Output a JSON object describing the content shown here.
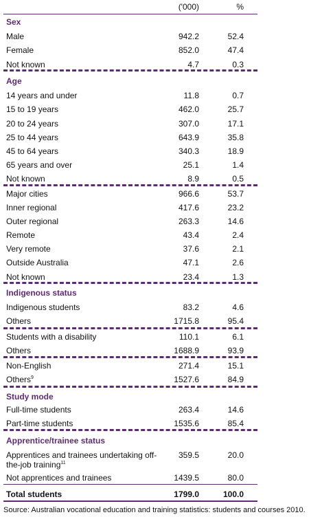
{
  "header": {
    "col1": "('000)",
    "col2": "%"
  },
  "rows": [
    {
      "kind": "head",
      "label": "Sex"
    },
    {
      "kind": "row",
      "label": "Male",
      "v1": "942.2",
      "v2": "52.4"
    },
    {
      "kind": "row",
      "label": "Female",
      "v1": "852.0",
      "v2": "47.4"
    },
    {
      "kind": "row",
      "label": "Not known",
      "v1": "4.7",
      "v2": "0.3"
    },
    {
      "kind": "head",
      "label": "Age"
    },
    {
      "kind": "row",
      "label": "14 years and under",
      "v1": "11.8",
      "v2": "0.7"
    },
    {
      "kind": "row",
      "label": "15 to 19 years",
      "v1": "462.0",
      "v2": "25.7"
    },
    {
      "kind": "row",
      "label": "20 to 24 years",
      "v1": "307.0",
      "v2": "17.1"
    },
    {
      "kind": "row",
      "label": "25 to 44 years",
      "v1": "643.9",
      "v2": "35.8"
    },
    {
      "kind": "row",
      "label": "45 to 64 years",
      "v1": "340.3",
      "v2": "18.9"
    },
    {
      "kind": "row",
      "label": "65 years and over",
      "v1": "25.1",
      "v2": "1.4"
    },
    {
      "kind": "row",
      "label": "Not known",
      "v1": "8.9",
      "v2": "0.5"
    },
    {
      "kind": "row",
      "label": "Major cities",
      "v1": "966.6",
      "v2": "53.7"
    },
    {
      "kind": "row",
      "label": "Inner regional",
      "v1": "417.6",
      "v2": "23.2"
    },
    {
      "kind": "row",
      "label": "Outer regional",
      "v1": "263.3",
      "v2": "14.6"
    },
    {
      "kind": "row",
      "label": "Remote",
      "v1": "43.4",
      "v2": "2.4"
    },
    {
      "kind": "row",
      "label": "Very remote",
      "v1": "37.6",
      "v2": "2.1"
    },
    {
      "kind": "row",
      "label": "Outside Australia",
      "v1": "47.1",
      "v2": "2.6"
    },
    {
      "kind": "row",
      "label": "Not known",
      "v1": "23.4",
      "v2": "1.3"
    },
    {
      "kind": "head",
      "label": "Indigenous status"
    },
    {
      "kind": "row",
      "label": "Indigenous students",
      "v1": "83.2",
      "v2": "4.6"
    },
    {
      "kind": "row",
      "label": "Others",
      "v1": "1715.8",
      "v2": "95.4"
    },
    {
      "kind": "row",
      "label": "Students with a disability",
      "v1": "110.1",
      "v2": "6.1"
    },
    {
      "kind": "row",
      "label": "Others",
      "v1": "1688.9",
      "v2": "93.9"
    },
    {
      "kind": "row",
      "label": "Non-English",
      "v1": "271.4",
      "v2": "15.1"
    },
    {
      "kind": "row",
      "label": "Others",
      "sup": "9",
      "v1": "1527.6",
      "v2": "84.9"
    },
    {
      "kind": "head",
      "label": "Study mode"
    },
    {
      "kind": "row",
      "label": "Full-time students",
      "v1": "263.4",
      "v2": "14.6"
    },
    {
      "kind": "row",
      "label": "Part-time students",
      "v1": "1535.6",
      "v2": "85.4"
    },
    {
      "kind": "head",
      "label": "Apprentice/trainee status"
    },
    {
      "kind": "row2",
      "label": "Apprentices and trainees undertaking off-",
      "label2": "the-job training",
      "sup": "11",
      "v1": "359.5",
      "v2": "20.0"
    },
    {
      "kind": "row",
      "label": "Not apprentices and trainees",
      "v1": "1439.5",
      "v2": "80.0"
    },
    {
      "kind": "total",
      "label": "Total students",
      "v1": "1799.0",
      "v2": "100.0"
    }
  ],
  "source": "Source: Australian vocational education and training statistics: students and courses 2010."
}
